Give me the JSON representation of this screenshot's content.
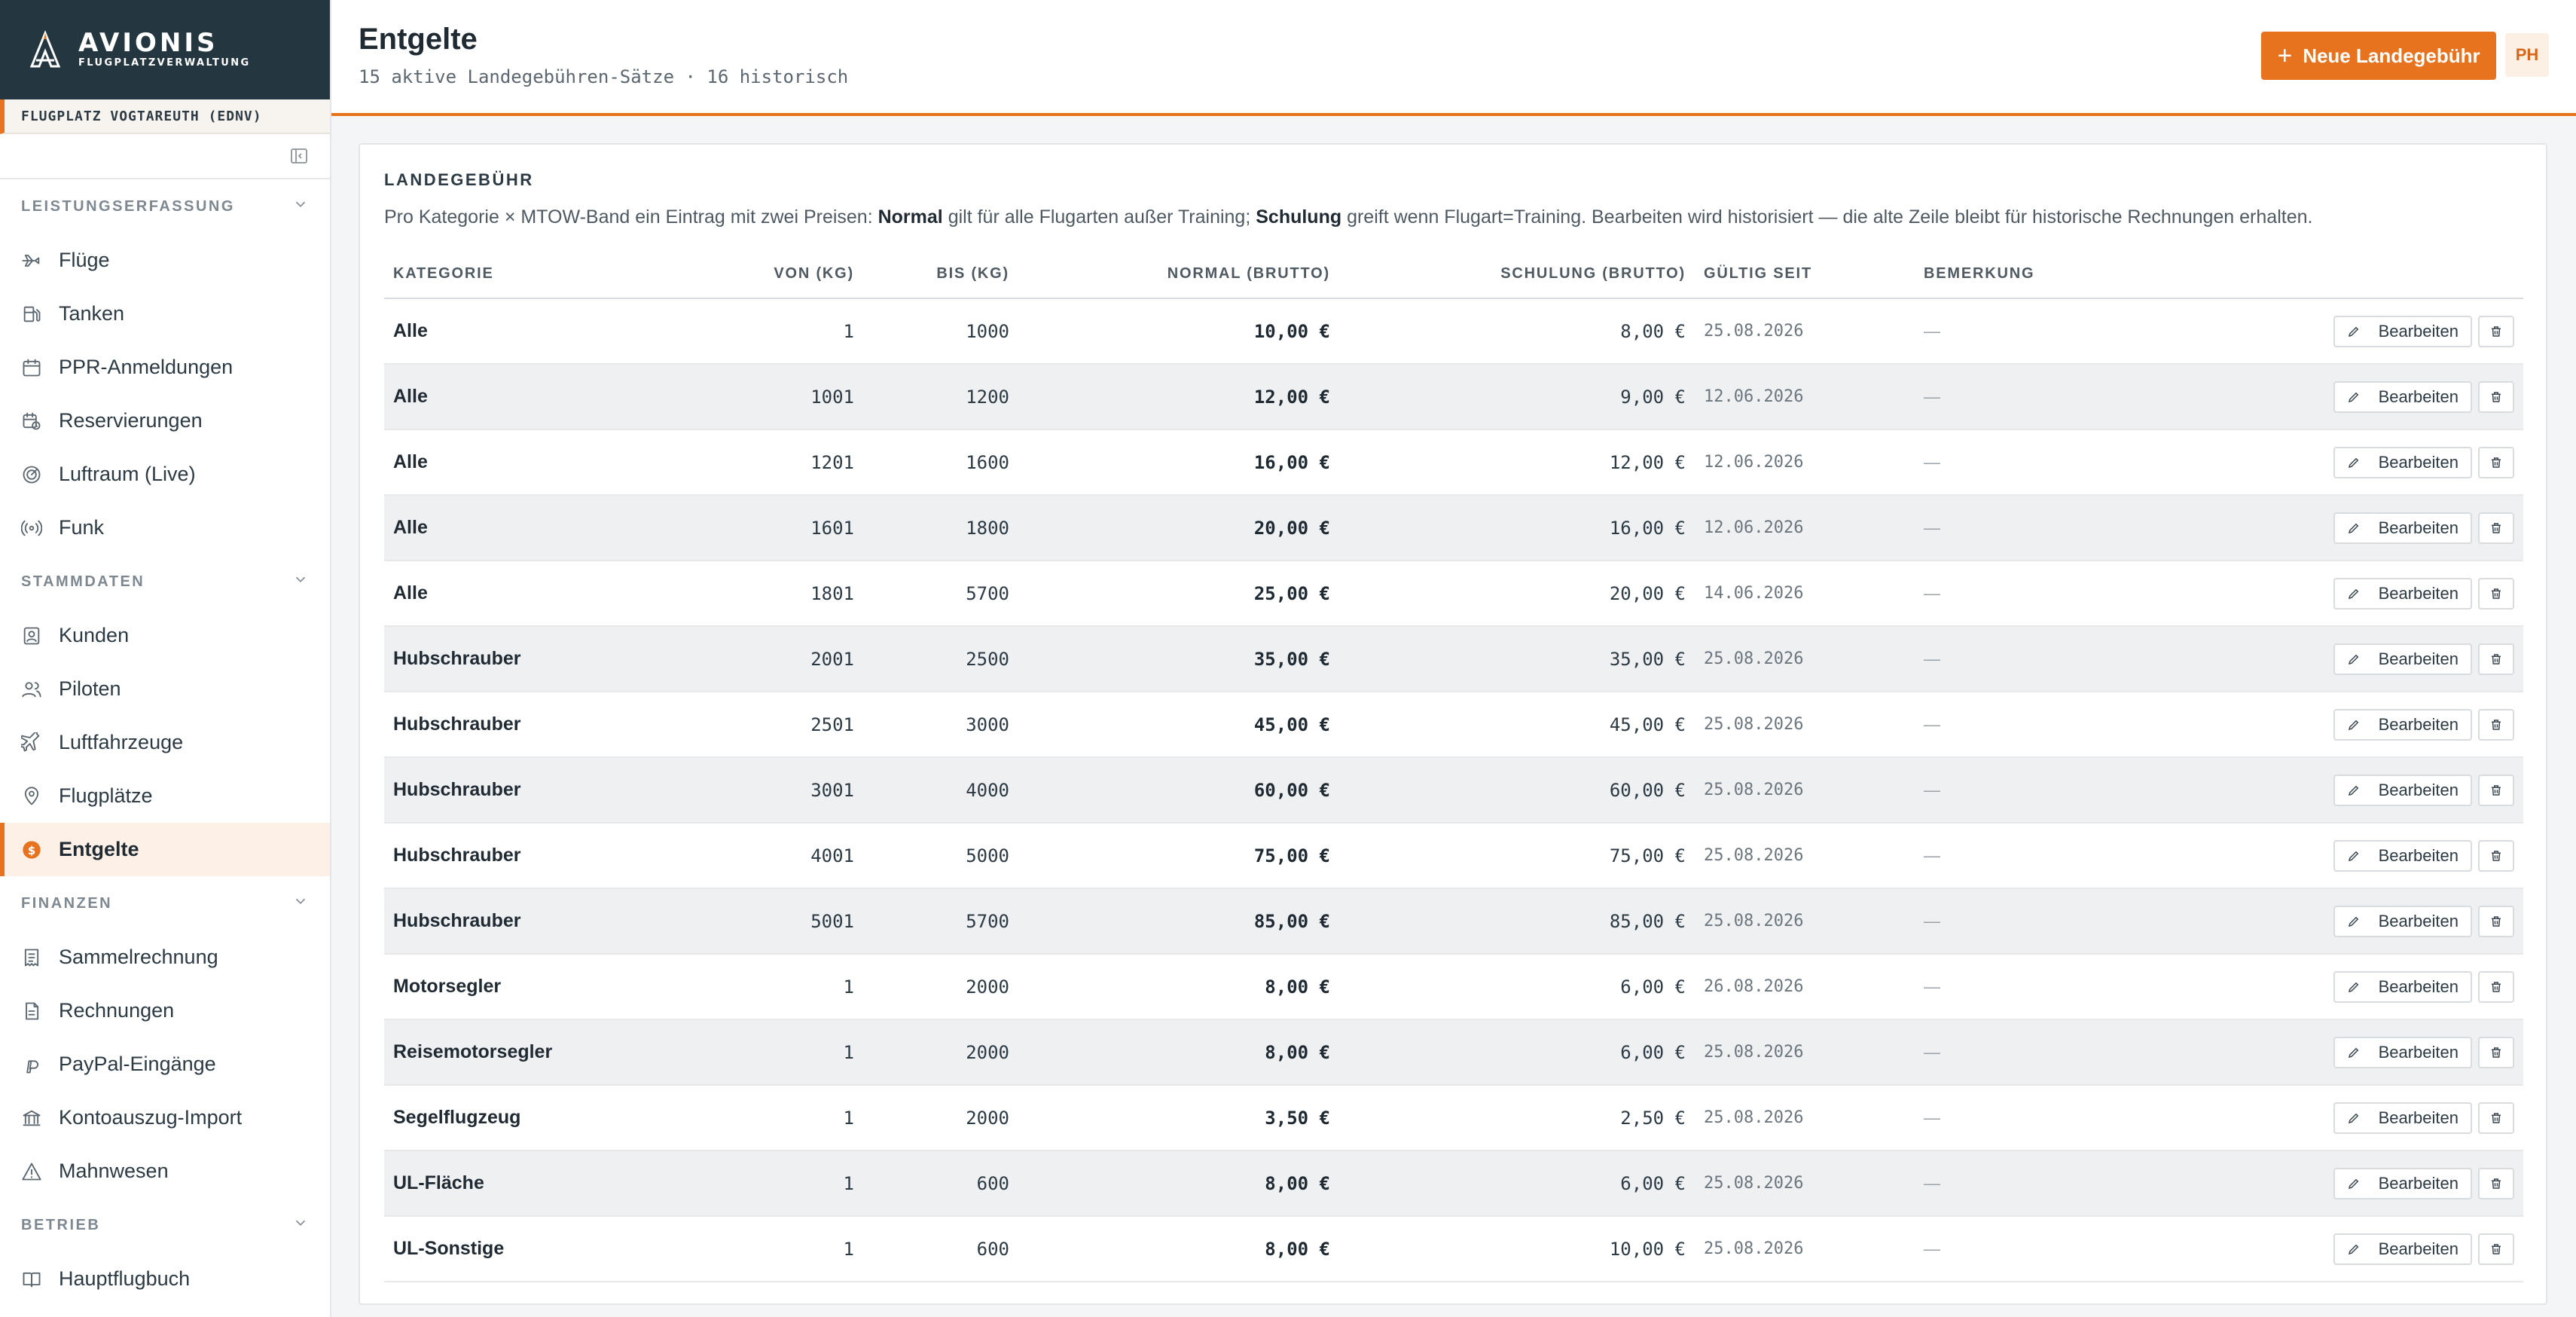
{
  "brand": {
    "name": "AVIONIS",
    "subtitle": "FLUGPLATZVERWALTUNG"
  },
  "airfield": "FLUGPLATZ VOGTAREUTH (EDNV)",
  "nav": {
    "sections": [
      {
        "title": "LEISTUNGSERFASSUNG",
        "items": [
          "Flüge",
          "Tanken",
          "PPR-Anmeldungen",
          "Reservierungen",
          "Luftraum (Live)",
          "Funk"
        ]
      },
      {
        "title": "STAMMDATEN",
        "items": [
          "Kunden",
          "Piloten",
          "Luftfahrzeuge",
          "Flugplätze",
          "Entgelte"
        ]
      },
      {
        "title": "FINANZEN",
        "items": [
          "Sammelrechnung",
          "Rechnungen",
          "PayPal-Eingänge",
          "Kontoauszug-Import",
          "Mahnwesen"
        ]
      },
      {
        "title": "BETRIEB",
        "items": [
          "Hauptflugbuch"
        ]
      }
    ],
    "active": "Entgelte"
  },
  "header": {
    "title": "Entgelte",
    "subtitle": "15 aktive Landegebühren-Sätze · 16 historisch",
    "new_button": "Neue Landegebühr",
    "avatar": "PH"
  },
  "card": {
    "title": "LANDEGEBÜHR",
    "desc": {
      "p1": "Pro Kategorie × MTOW-Band ein Eintrag mit zwei Preisen: ",
      "b1": "Normal",
      "p2": " gilt für alle Flugarten außer Training; ",
      "b2": "Schulung",
      "p3": " greift wenn Flugart=Training. Bearbeiten wird historisiert — die alte Zeile bleibt für historische Rechnungen erhalten."
    }
  },
  "table": {
    "columns": [
      "KATEGORIE",
      "VON (KG)",
      "BIS (KG)",
      "NORMAL (BRUTTO)",
      "SCHULUNG (BRUTTO)",
      "GÜLTIG SEIT",
      "BEMERKUNG"
    ],
    "edit_label": "Bearbeiten",
    "rows": [
      {
        "kategorie": "Alle",
        "von": "1",
        "bis": "1000",
        "normal": "10,00 €",
        "schulung": "8,00 €",
        "gueltig": "25.08.2026",
        "bemerkung": "—"
      },
      {
        "kategorie": "Alle",
        "von": "1001",
        "bis": "1200",
        "normal": "12,00 €",
        "schulung": "9,00 €",
        "gueltig": "12.06.2026",
        "bemerkung": "—"
      },
      {
        "kategorie": "Alle",
        "von": "1201",
        "bis": "1600",
        "normal": "16,00 €",
        "schulung": "12,00 €",
        "gueltig": "12.06.2026",
        "bemerkung": "—"
      },
      {
        "kategorie": "Alle",
        "von": "1601",
        "bis": "1800",
        "normal": "20,00 €",
        "schulung": "16,00 €",
        "gueltig": "12.06.2026",
        "bemerkung": "—"
      },
      {
        "kategorie": "Alle",
        "von": "1801",
        "bis": "5700",
        "normal": "25,00 €",
        "schulung": "20,00 €",
        "gueltig": "14.06.2026",
        "bemerkung": "—"
      },
      {
        "kategorie": "Hubschrauber",
        "von": "2001",
        "bis": "2500",
        "normal": "35,00 €",
        "schulung": "35,00 €",
        "gueltig": "25.08.2026",
        "bemerkung": "—"
      },
      {
        "kategorie": "Hubschrauber",
        "von": "2501",
        "bis": "3000",
        "normal": "45,00 €",
        "schulung": "45,00 €",
        "gueltig": "25.08.2026",
        "bemerkung": "—"
      },
      {
        "kategorie": "Hubschrauber",
        "von": "3001",
        "bis": "4000",
        "normal": "60,00 €",
        "schulung": "60,00 €",
        "gueltig": "25.08.2026",
        "bemerkung": "—"
      },
      {
        "kategorie": "Hubschrauber",
        "von": "4001",
        "bis": "5000",
        "normal": "75,00 €",
        "schulung": "75,00 €",
        "gueltig": "25.08.2026",
        "bemerkung": "—"
      },
      {
        "kategorie": "Hubschrauber",
        "von": "5001",
        "bis": "5700",
        "normal": "85,00 €",
        "schulung": "85,00 €",
        "gueltig": "25.08.2026",
        "bemerkung": "—"
      },
      {
        "kategorie": "Motorsegler",
        "von": "1",
        "bis": "2000",
        "normal": "8,00 €",
        "schulung": "6,00 €",
        "gueltig": "26.08.2026",
        "bemerkung": "—"
      },
      {
        "kategorie": "Reisemotorsegler",
        "von": "1",
        "bis": "2000",
        "normal": "8,00 €",
        "schulung": "6,00 €",
        "gueltig": "25.08.2026",
        "bemerkung": "—"
      },
      {
        "kategorie": "Segelflugzeug",
        "von": "1",
        "bis": "2000",
        "normal": "3,50 €",
        "schulung": "2,50 €",
        "gueltig": "25.08.2026",
        "bemerkung": "—"
      },
      {
        "kategorie": "UL-Fläche",
        "von": "1",
        "bis": "600",
        "normal": "8,00 €",
        "schulung": "6,00 €",
        "gueltig": "25.08.2026",
        "bemerkung": "—"
      },
      {
        "kategorie": "UL-Sonstige",
        "von": "1",
        "bis": "600",
        "normal": "8,00 €",
        "schulung": "10,00 €",
        "gueltig": "25.08.2026",
        "bemerkung": "—"
      }
    ]
  },
  "colors": {
    "accent": "#e8731e",
    "sidebar_brand_bg": "#243640",
    "active_bg": "#fdf1e7"
  },
  "icons": {
    "brand": "avionis-logo",
    "collapse": "sidebar-collapse-icon",
    "nav": {
      "Flüge": "plane-icon",
      "Tanken": "fuel-icon",
      "PPR-Anmeldungen": "calendar-icon",
      "Reservierungen": "calendar-clock-icon",
      "Luftraum (Live)": "radar-icon",
      "Funk": "radio-icon",
      "Kunden": "contact-icon",
      "Piloten": "users-icon",
      "Luftfahrzeuge": "aircraft-icon",
      "Flugplätze": "map-pin-icon",
      "Entgelte": "euro-icon",
      "Sammelrechnung": "receipt-icon",
      "Rechnungen": "invoice-icon",
      "PayPal-Eingänge": "paypal-icon",
      "Kontoauszug-Import": "bank-icon",
      "Mahnwesen": "warning-icon",
      "Hauptflugbuch": "book-icon"
    },
    "edit": "pencil-icon",
    "delete": "trash-icon"
  }
}
